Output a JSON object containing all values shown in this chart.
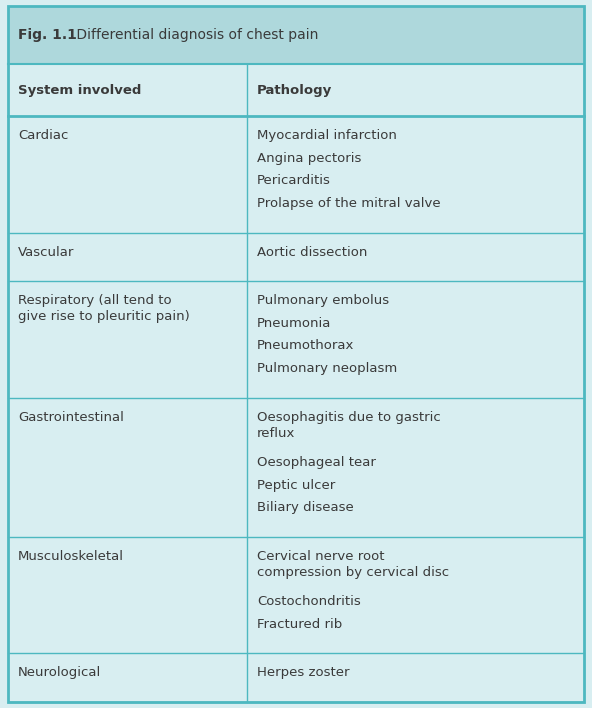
{
  "title_bold": "Fig. 1.1",
  "title_normal": " Differential diagnosis of chest pain",
  "title_bg": "#aed8dc",
  "body_bg": "#d8eef1",
  "border_color": "#4db8c0",
  "text_color": "#3a3a3a",
  "col1_header": "System involved",
  "col2_header": "Pathology",
  "col_split": 0.415,
  "rows": [
    {
      "system": "Cardiac",
      "pathology": [
        "Myocardial infarction",
        "Angina pectoris",
        "Pericarditis",
        "Prolapse of the mitral valve"
      ]
    },
    {
      "system": "Vascular",
      "pathology": [
        "Aortic dissection"
      ]
    },
    {
      "system": "Respiratory (all tend to\ngive rise to pleuritic pain)",
      "pathology": [
        "Pulmonary embolus",
        "Pneumonia",
        "Pneumothorax",
        "Pulmonary neoplasm"
      ]
    },
    {
      "system": "Gastrointestinal",
      "pathology": [
        "Oesophagitis due to gastric\nreflux",
        "Oesophageal tear",
        "Peptic ulcer",
        "Biliary disease"
      ]
    },
    {
      "system": "Musculoskeletal",
      "pathology": [
        "Cervical nerve root\ncompression by cervical disc",
        "Costochondritis",
        "Fractured rib"
      ]
    },
    {
      "system": "Neurological",
      "pathology": [
        "Herpes zoster"
      ]
    }
  ]
}
